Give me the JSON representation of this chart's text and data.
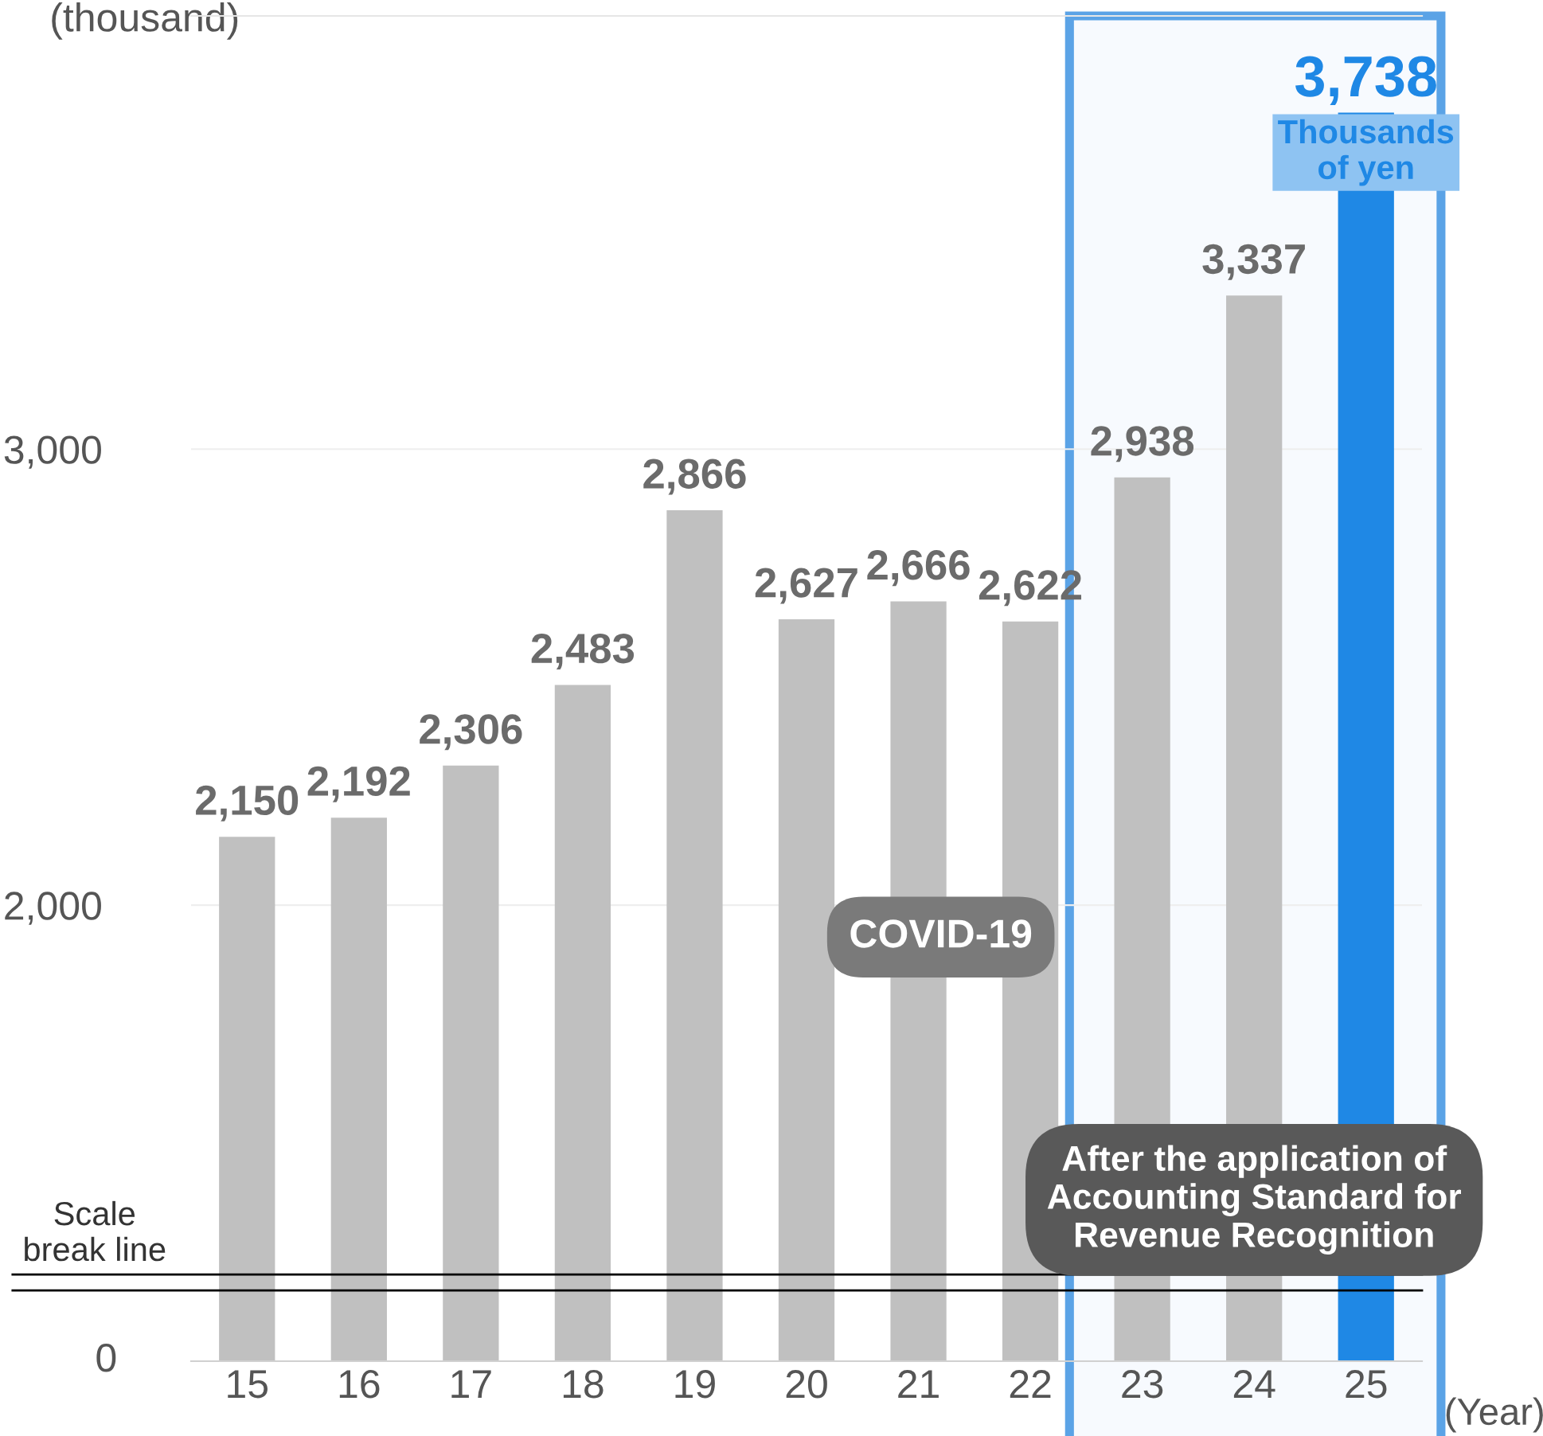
{
  "chart_data": {
    "type": "bar",
    "ylabel": "(thousand)",
    "xlabel": "(Year)",
    "categories": [
      "15",
      "16",
      "17",
      "18",
      "19",
      "20",
      "21",
      "22",
      "23",
      "24",
      "25"
    ],
    "values": [
      2150,
      2192,
      2306,
      2483,
      2866,
      2627,
      2666,
      2622,
      2938,
      3337,
      3738
    ],
    "value_labels": [
      "2,150",
      "2,192",
      "2,306",
      "2,483",
      "2,866",
      "2,627",
      "2,666",
      "2,622",
      "2,938",
      "3,337",
      "3,738"
    ],
    "colors": [
      "#c0c0c0",
      "#c0c0c0",
      "#c0c0c0",
      "#c0c0c0",
      "#c0c0c0",
      "#c0c0c0",
      "#c0c0c0",
      "#c0c0c0",
      "#c0c0c0",
      "#c0c0c0",
      "#1f88e5"
    ],
    "ylim": [
      1000,
      3950
    ],
    "yticks": [
      {
        "value": 2000,
        "label": "2,000"
      },
      {
        "value": 3000,
        "label": "3,000"
      }
    ],
    "grid": "y",
    "bands": [
      {
        "axis": "x",
        "from": "23",
        "to": "25",
        "color": "#5ba3e6"
      }
    ],
    "ref_lines": [
      {
        "axis": "y",
        "value": 1190,
        "label": "Scale break line",
        "color": "#000000"
      },
      {
        "axis": "y",
        "value": 1155,
        "label": null,
        "color": "#000000"
      }
    ],
    "annotations": [
      "COVID-19",
      {
        "text": "Thousands of yen",
        "x": "25",
        "y": 3738
      },
      "After the application of Accounting Standard for Revenue Recognition",
      "0"
    ]
  }
}
